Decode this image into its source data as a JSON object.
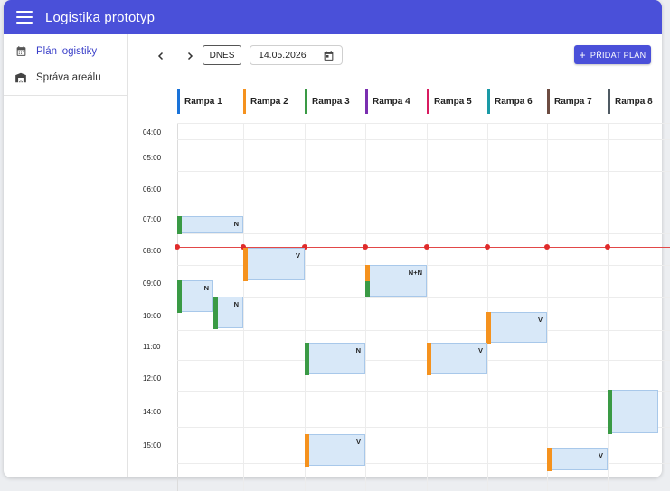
{
  "app": {
    "title": "Logistika prototyp",
    "menu_icon": "menu-icon"
  },
  "sidebar": {
    "items": [
      {
        "label": "Plán logistiky",
        "icon": "calendar-icon",
        "active": true
      },
      {
        "label": "Správa areálu",
        "icon": "warehouse-icon",
        "active": false
      }
    ]
  },
  "toolbar": {
    "today_label": "DNES",
    "date_value": "14.05.2026",
    "add_label": "PŘIDAT PLÁN"
  },
  "colors": {
    "accent": "#4a50d9",
    "now_line": "#e02b2b",
    "block_fill": "#d8e8f8",
    "green": "#3a9a45",
    "orange": "#f5921e"
  },
  "ramps": [
    {
      "name": "Rampa 1",
      "color": "#1a73d9"
    },
    {
      "name": "Rampa 2",
      "color": "#f5921e"
    },
    {
      "name": "Rampa 3",
      "color": "#3a9a45"
    },
    {
      "name": "Rampa 4",
      "color": "#7a2eb0"
    },
    {
      "name": "Rampa 5",
      "color": "#d81b60"
    },
    {
      "name": "Rampa 6",
      "color": "#1a9aa6"
    },
    {
      "name": "Rampa 7",
      "color": "#6d4c41"
    },
    {
      "name": "Rampa 8",
      "color": "#4f5a63"
    }
  ],
  "times": [
    "04:00",
    "05:00",
    "06:00",
    "07:00",
    "08:00",
    "09:00",
    "10:00",
    "11:00",
    "12:00",
    "14:00",
    "15:00"
  ],
  "blocks": [
    {
      "label": "N",
      "stripe": [
        "green"
      ]
    },
    {
      "label": "V",
      "stripe": [
        "orange"
      ]
    },
    {
      "label": "N",
      "stripe": [
        "green"
      ]
    },
    {
      "label": "N",
      "stripe": [
        "green"
      ]
    },
    {
      "label": "N+N",
      "stripe": [
        "orange",
        "green"
      ]
    },
    {
      "label": "V",
      "stripe": [
        "orange"
      ]
    },
    {
      "label": "N",
      "stripe": [
        "green"
      ]
    },
    {
      "label": "V",
      "stripe": [
        "orange"
      ]
    },
    {
      "label": "",
      "stripe": [
        "green"
      ]
    },
    {
      "label": "V",
      "stripe": [
        "orange"
      ]
    },
    {
      "label": "V",
      "stripe": [
        "orange"
      ]
    }
  ]
}
